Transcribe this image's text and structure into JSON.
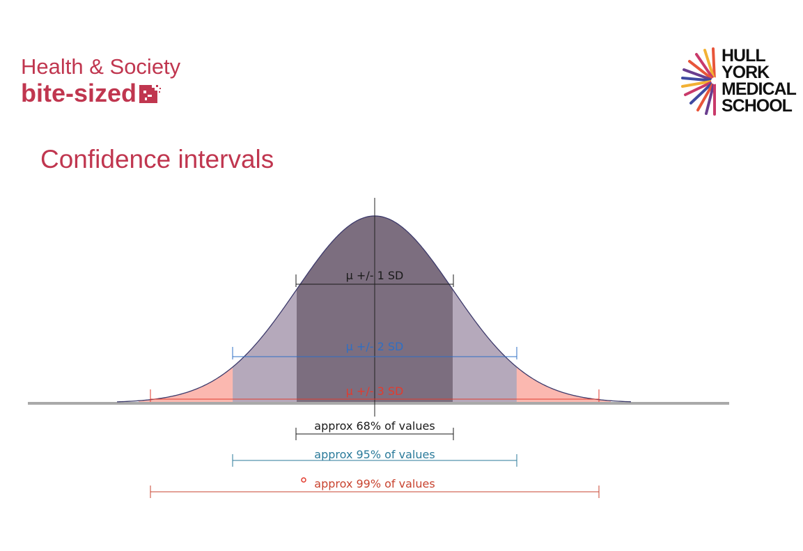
{
  "header": {
    "brand_line1": "Health & Society",
    "brand_line2": "bite-sized",
    "title": "Confidence intervals"
  },
  "logo": {
    "lines": [
      "HULL",
      "YORK",
      "MEDICAL",
      "SCHOOL"
    ]
  },
  "diagram": {
    "distribution": "normal",
    "bands": [
      {
        "label": "μ +/- 1 SD",
        "sd": 1,
        "range_label": "approx 68% of values",
        "color": "#1a1a1a",
        "range_color": "#1a1a1a"
      },
      {
        "label": "μ +/- 2 SD",
        "sd": 2,
        "range_label": "approx 95% of values",
        "color": "#2e6fc4",
        "range_color": "#2a7a9a"
      },
      {
        "label": "μ +/- 3 SD",
        "sd": 3,
        "range_label": "approx 99% of values",
        "color": "#e23b2e",
        "range_color": "#c8432f"
      }
    ],
    "colors": {
      "fill_1sd": "#7c6e7f",
      "fill_2sd": "#b5a9bb",
      "fill_3sd": "#fbb8b0",
      "curve": "#3d3a6b",
      "baseline": "#a9a9a9"
    }
  }
}
